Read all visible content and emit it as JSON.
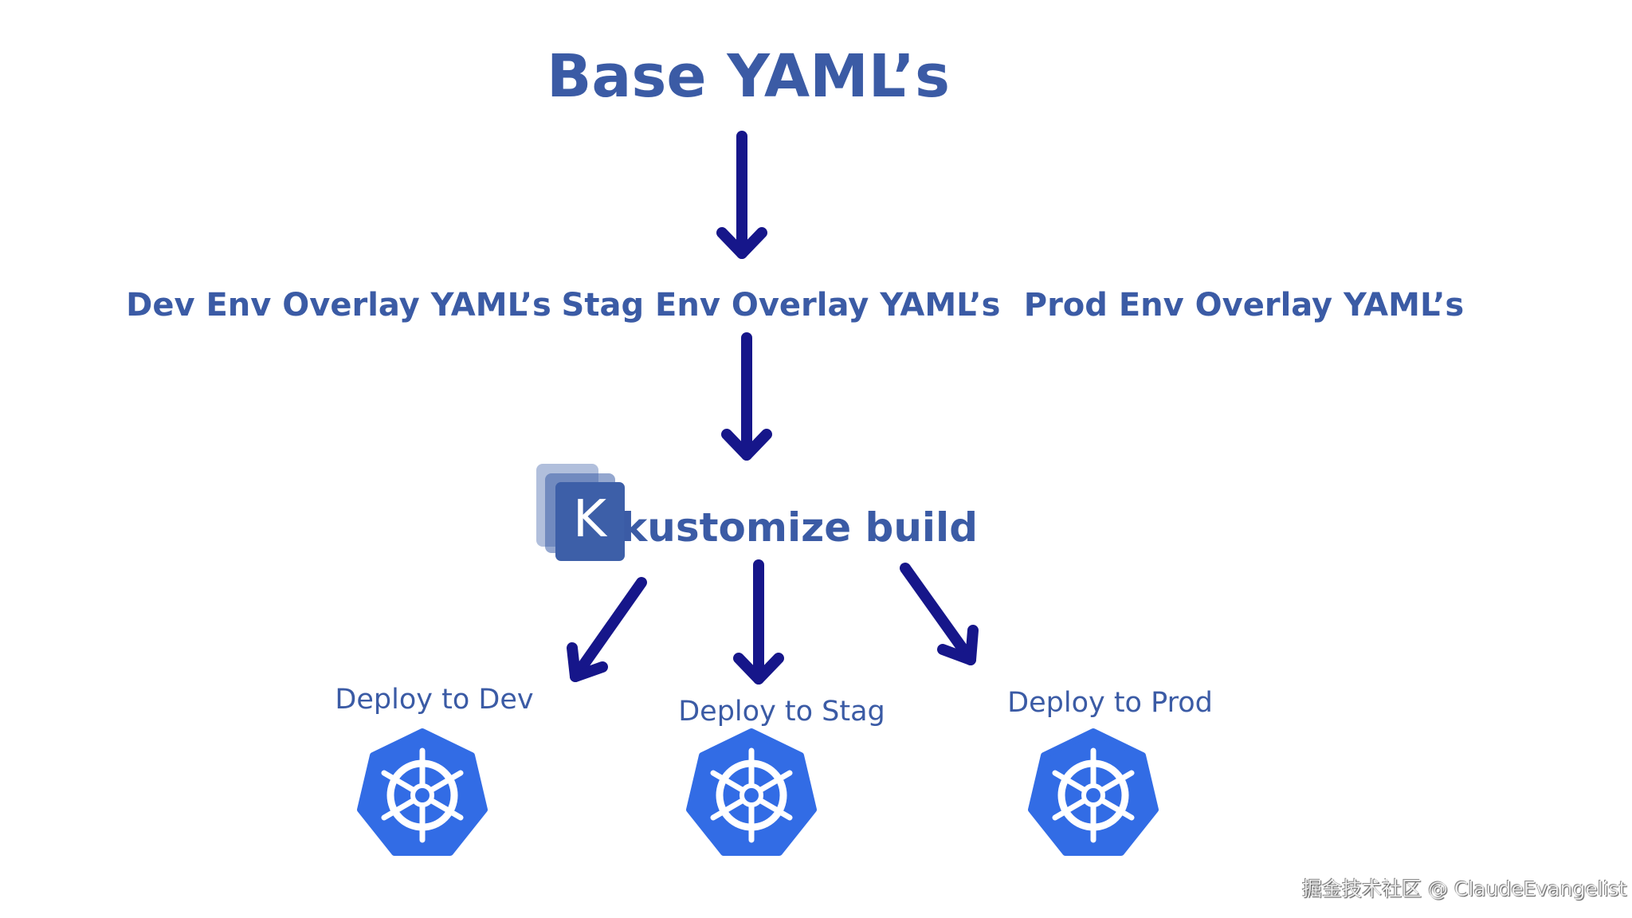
{
  "title": "Base YAML’s",
  "overlays": [
    "Dev Env Overlay YAML’s",
    "Stag Env Overlay YAML’s",
    "Prod Env Overlay YAML’s"
  ],
  "build": {
    "logo_letter": "K",
    "label": "kustomize build"
  },
  "deploys": [
    "Deploy to Dev",
    "Deploy to Stag",
    "Deploy to Prod"
  ],
  "watermark": "掘金技术社区 @ ClaudeEvangelist",
  "colors": {
    "text": "#3b5ba5",
    "arrow": "#16168a",
    "kubernetes": "#326ce5",
    "kustomize": "#3d5fa8"
  }
}
